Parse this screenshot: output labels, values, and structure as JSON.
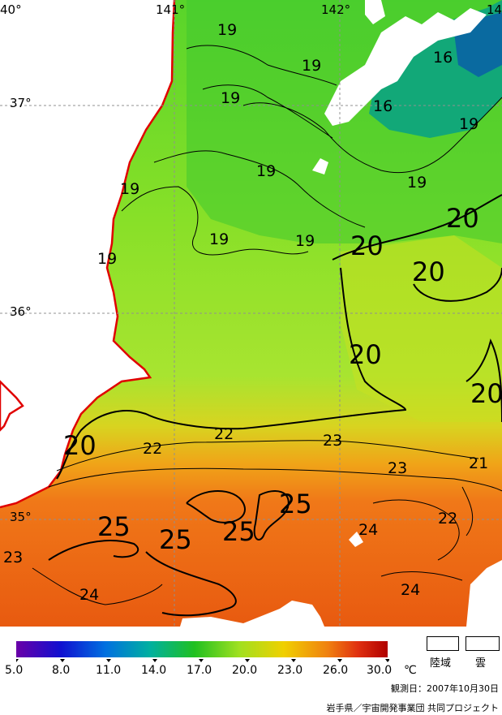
{
  "coords": {
    "lon_140": "40°",
    "lon_141": "141°",
    "lon_142": "142°",
    "lon_143": "14",
    "lat_37": "37°",
    "lat_36": "36°",
    "lat_35": "35°"
  },
  "contour_labels": {
    "c19_top": "19",
    "c19_a": "19",
    "c19_b": "19",
    "c19_c": "19",
    "c19_d": "19",
    "c19_e": "19",
    "c19_f": "19",
    "c19_g": "19",
    "c19_h": "19",
    "c16_a": "16",
    "c16_b": "16",
    "c20_a": "20",
    "c20_b": "20",
    "c20_c": "20",
    "c20_d": "20",
    "c20_e": "20",
    "c22_a": "22",
    "c22_b": "22",
    "c22_c": "22",
    "c23_a": "23",
    "c23_b": "23",
    "c23_c": "23",
    "c21": "21",
    "c24_a": "24",
    "c24_b": "24",
    "c24_c": "24",
    "c25_a": "25",
    "c25_b": "25",
    "c25_c": "25",
    "c25_d": "25"
  },
  "legend": {
    "ticks": [
      "5.0",
      "8.0",
      "11.0",
      "14.0",
      "17.0",
      "20.0",
      "23.0",
      "26.0",
      "30.0"
    ],
    "unit": "℃",
    "land_label": "陸域",
    "cloud_label": "雲",
    "colors": [
      "#6a00a8",
      "#1010d0",
      "#0070e0",
      "#00b0a0",
      "#20c020",
      "#a0e020",
      "#f0d000",
      "#f08010",
      "#e03010",
      "#b00000"
    ]
  },
  "footer": {
    "observation_date": "観測日：2007年10月30日",
    "credit": "岩手県／宇宙開発事業団 共同プロジェクト"
  }
}
